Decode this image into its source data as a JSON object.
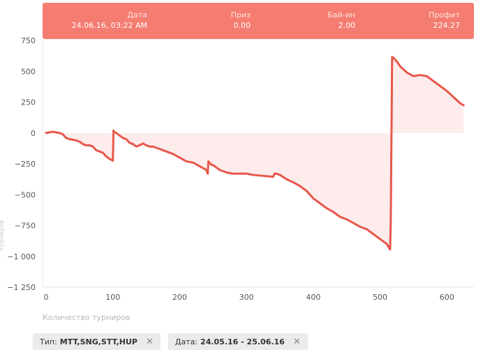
{
  "tooltip": {
    "columns": [
      {
        "label": "Дата",
        "value": "24.06.16, 03:22 AM"
      },
      {
        "label": "Приз",
        "value": "0.00"
      },
      {
        "label": "Бай-ин",
        "value": "2.00"
      },
      {
        "label": "Профит",
        "value": "224.27"
      }
    ]
  },
  "chart_data": {
    "type": "area",
    "xlabel": "Количество турниров",
    "ylabel": "турниров",
    "xlim": [
      0,
      630
    ],
    "ylim": [
      -1250,
      750
    ],
    "xticks": [
      0,
      100,
      200,
      300,
      400,
      500,
      600
    ],
    "yticks": [
      750,
      500,
      250,
      0,
      -250,
      -500,
      -750,
      -1000,
      -1250
    ],
    "ytick_labels": [
      "750",
      "500",
      "250",
      "0",
      "−250",
      "−500",
      "−750",
      "−1 000",
      "−1 250"
    ],
    "grid": false,
    "colors": {
      "line": "#e8574a",
      "fill": "#fdeceb"
    },
    "series": [
      {
        "x": [
          0,
          5,
          10,
          15,
          20,
          25,
          30,
          35,
          40,
          45,
          50,
          55,
          60,
          65,
          70,
          75,
          80,
          85,
          90,
          95,
          100,
          101,
          102,
          105,
          110,
          115,
          120,
          125,
          130,
          135,
          140,
          145,
          150,
          155,
          160,
          170,
          180,
          190,
          200,
          210,
          220,
          230,
          240,
          242,
          243,
          248,
          250,
          255,
          260,
          270,
          280,
          290,
          300,
          310,
          320,
          330,
          340,
          342,
          345,
          350,
          360,
          370,
          380,
          390,
          400,
          410,
          420,
          430,
          440,
          450,
          460,
          470,
          480,
          490,
          500,
          510,
          515,
          516,
          518,
          520,
          525,
          530,
          540,
          550,
          560,
          570,
          580,
          590,
          600,
          610,
          620,
          625
        ],
        "y": [
          0,
          5,
          10,
          5,
          0,
          -10,
          -40,
          -50,
          -55,
          -60,
          -70,
          -90,
          -100,
          -100,
          -110,
          -140,
          -150,
          -160,
          -190,
          -210,
          -225,
          20,
          10,
          0,
          -20,
          -40,
          -50,
          -80,
          -90,
          -110,
          -100,
          -85,
          -100,
          -110,
          -110,
          -130,
          -150,
          -170,
          -200,
          -230,
          -240,
          -270,
          -300,
          -330,
          -230,
          -260,
          -260,
          -280,
          -300,
          -320,
          -330,
          -330,
          -330,
          -340,
          -345,
          -350,
          -355,
          -330,
          -330,
          -340,
          -375,
          -400,
          -430,
          -470,
          -530,
          -570,
          -610,
          -640,
          -680,
          -700,
          -730,
          -760,
          -780,
          -820,
          -860,
          -900,
          -945,
          -700,
          615,
          610,
          580,
          540,
          490,
          460,
          470,
          460,
          420,
          380,
          340,
          290,
          240,
          225
        ]
      }
    ]
  },
  "filters": [
    {
      "label": "Тип:",
      "value": "MTT,SNG,STT,HUP",
      "close": "✕"
    },
    {
      "label": "Дата:",
      "value": "24.05.16 - 25.06.16",
      "close": "✕"
    }
  ]
}
